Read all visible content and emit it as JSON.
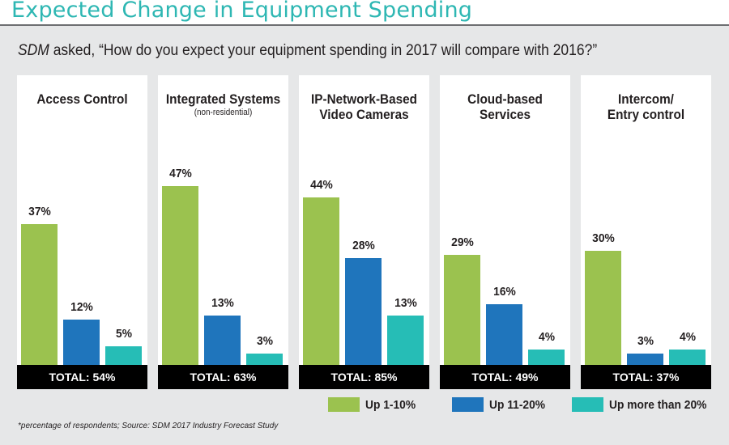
{
  "title": "Expected Change in Equipment Spending",
  "question": {
    "prefix": "SDM",
    "text": " asked, “How do you expect your equipment spending in 2017 will compare with 2016?”"
  },
  "footnote": "*percentage of respondents; Source: SDM 2017 Industry Forecast Study",
  "colors": {
    "up1_10": "#9bc24f",
    "up11_20": "#1f75bc",
    "up20plus": "#26bdb6",
    "title": "#2eb7b3"
  },
  "chart_data": {
    "type": "bar",
    "title": "Expected Change in Equipment Spending",
    "categories": [
      "Access Control",
      "Integrated Systems",
      "IP-Network-Based Video Cameras",
      "Cloud-based Services",
      "Intercom/ Entry control"
    ],
    "panels": [
      {
        "title_line1": "Access Control",
        "title_line2": "",
        "subtitle": "",
        "values": [
          37,
          12,
          5
        ],
        "labels": [
          "37%",
          "12%",
          "5%"
        ],
        "total": "TOTAL: 54%"
      },
      {
        "title_line1": "Integrated Systems",
        "title_line2": "",
        "subtitle": "(non-residential)",
        "values": [
          47,
          13,
          3
        ],
        "labels": [
          "47%",
          "13%",
          "3%"
        ],
        "total": "TOTAL: 63%"
      },
      {
        "title_line1": "IP-Network-Based",
        "title_line2": "Video Cameras",
        "subtitle": "",
        "values": [
          44,
          28,
          13
        ],
        "labels": [
          "44%",
          "28%",
          "13%"
        ],
        "total": "TOTAL: 85%"
      },
      {
        "title_line1": "Cloud-based",
        "title_line2": "Services",
        "subtitle": "",
        "values": [
          29,
          16,
          4
        ],
        "labels": [
          "29%",
          "16%",
          "4%"
        ],
        "total": "TOTAL: 49%"
      },
      {
        "title_line1": "Intercom/",
        "title_line2": "Entry control",
        "subtitle": "",
        "values": [
          30,
          3,
          4
        ],
        "labels": [
          "30%",
          "3%",
          "4%"
        ],
        "total": "TOTAL: 37%"
      }
    ],
    "series": [
      {
        "name": "Up 1-10%",
        "values": [
          37,
          47,
          44,
          29,
          30
        ]
      },
      {
        "name": "Up 11-20%",
        "values": [
          12,
          13,
          28,
          16,
          3
        ]
      },
      {
        "name": "Up more than 20%",
        "values": [
          5,
          3,
          13,
          4,
          4
        ]
      }
    ],
    "legend": {
      "placement": "bottom-right",
      "items": [
        "Up 1-10%",
        "Up 11-20%",
        "Up more than 20%"
      ]
    },
    "ylim": [
      0,
      50
    ],
    "grid": false
  }
}
